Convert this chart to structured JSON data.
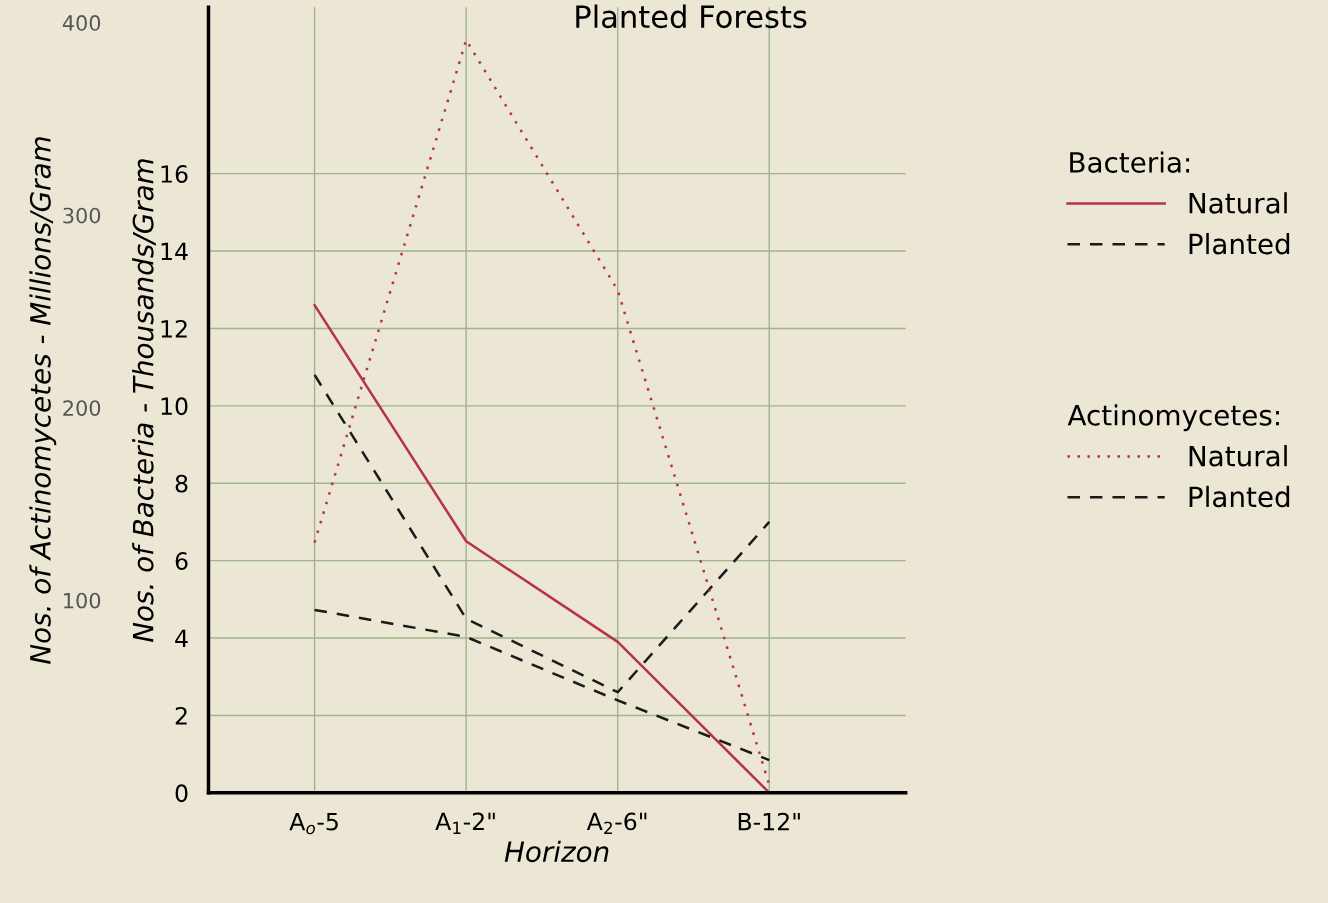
{
  "chart_data": {
    "type": "line",
    "title": "Planted Forests",
    "xlabel": "Horizon",
    "ylabel": "Nos. of Bacteria - Thousands/Gram",
    "y2label": "Nos. of Actinomycetes - Millions/Gram",
    "categories": [
      "A$_{o}$-5",
      "A$_{1}$-2\"",
      "A$_{2}$-6\"",
      "B-12\""
    ],
    "ylim": [
      0,
      20.3
    ],
    "yticks": [
      0,
      2,
      4,
      6,
      8,
      10,
      12,
      14,
      16
    ],
    "y2lim": [
      0,
      408
    ],
    "y2ticks": [
      100,
      200,
      300,
      400
    ],
    "annotations": [
      "Bacteria:",
      "Actinomycetes:"
    ],
    "series": [
      {
        "name": "Natural",
        "color": "#b5324a",
        "line_style": "solid",
        "values": [
          12.6,
          6.5,
          3.9,
          0
        ]
      },
      {
        "name": "Planted",
        "color": "#1a1a1a",
        "line_style": "dashed",
        "values": [
          10.8,
          4.5,
          2.6,
          7.0
        ]
      },
      {
        "name": "Natural",
        "color": "#b5324a",
        "line_style": "dotted",
        "axis": "y2",
        "values": [
          130,
          391,
          261,
          4
        ]
      },
      {
        "name": "Planted",
        "color": "#1a1a1a",
        "line_style": "dashed",
        "axis": "y2",
        "values": [
          95,
          81,
          48,
          17
        ]
      }
    ],
    "grid": true,
    "legend": "right",
    "marker": "none"
  }
}
